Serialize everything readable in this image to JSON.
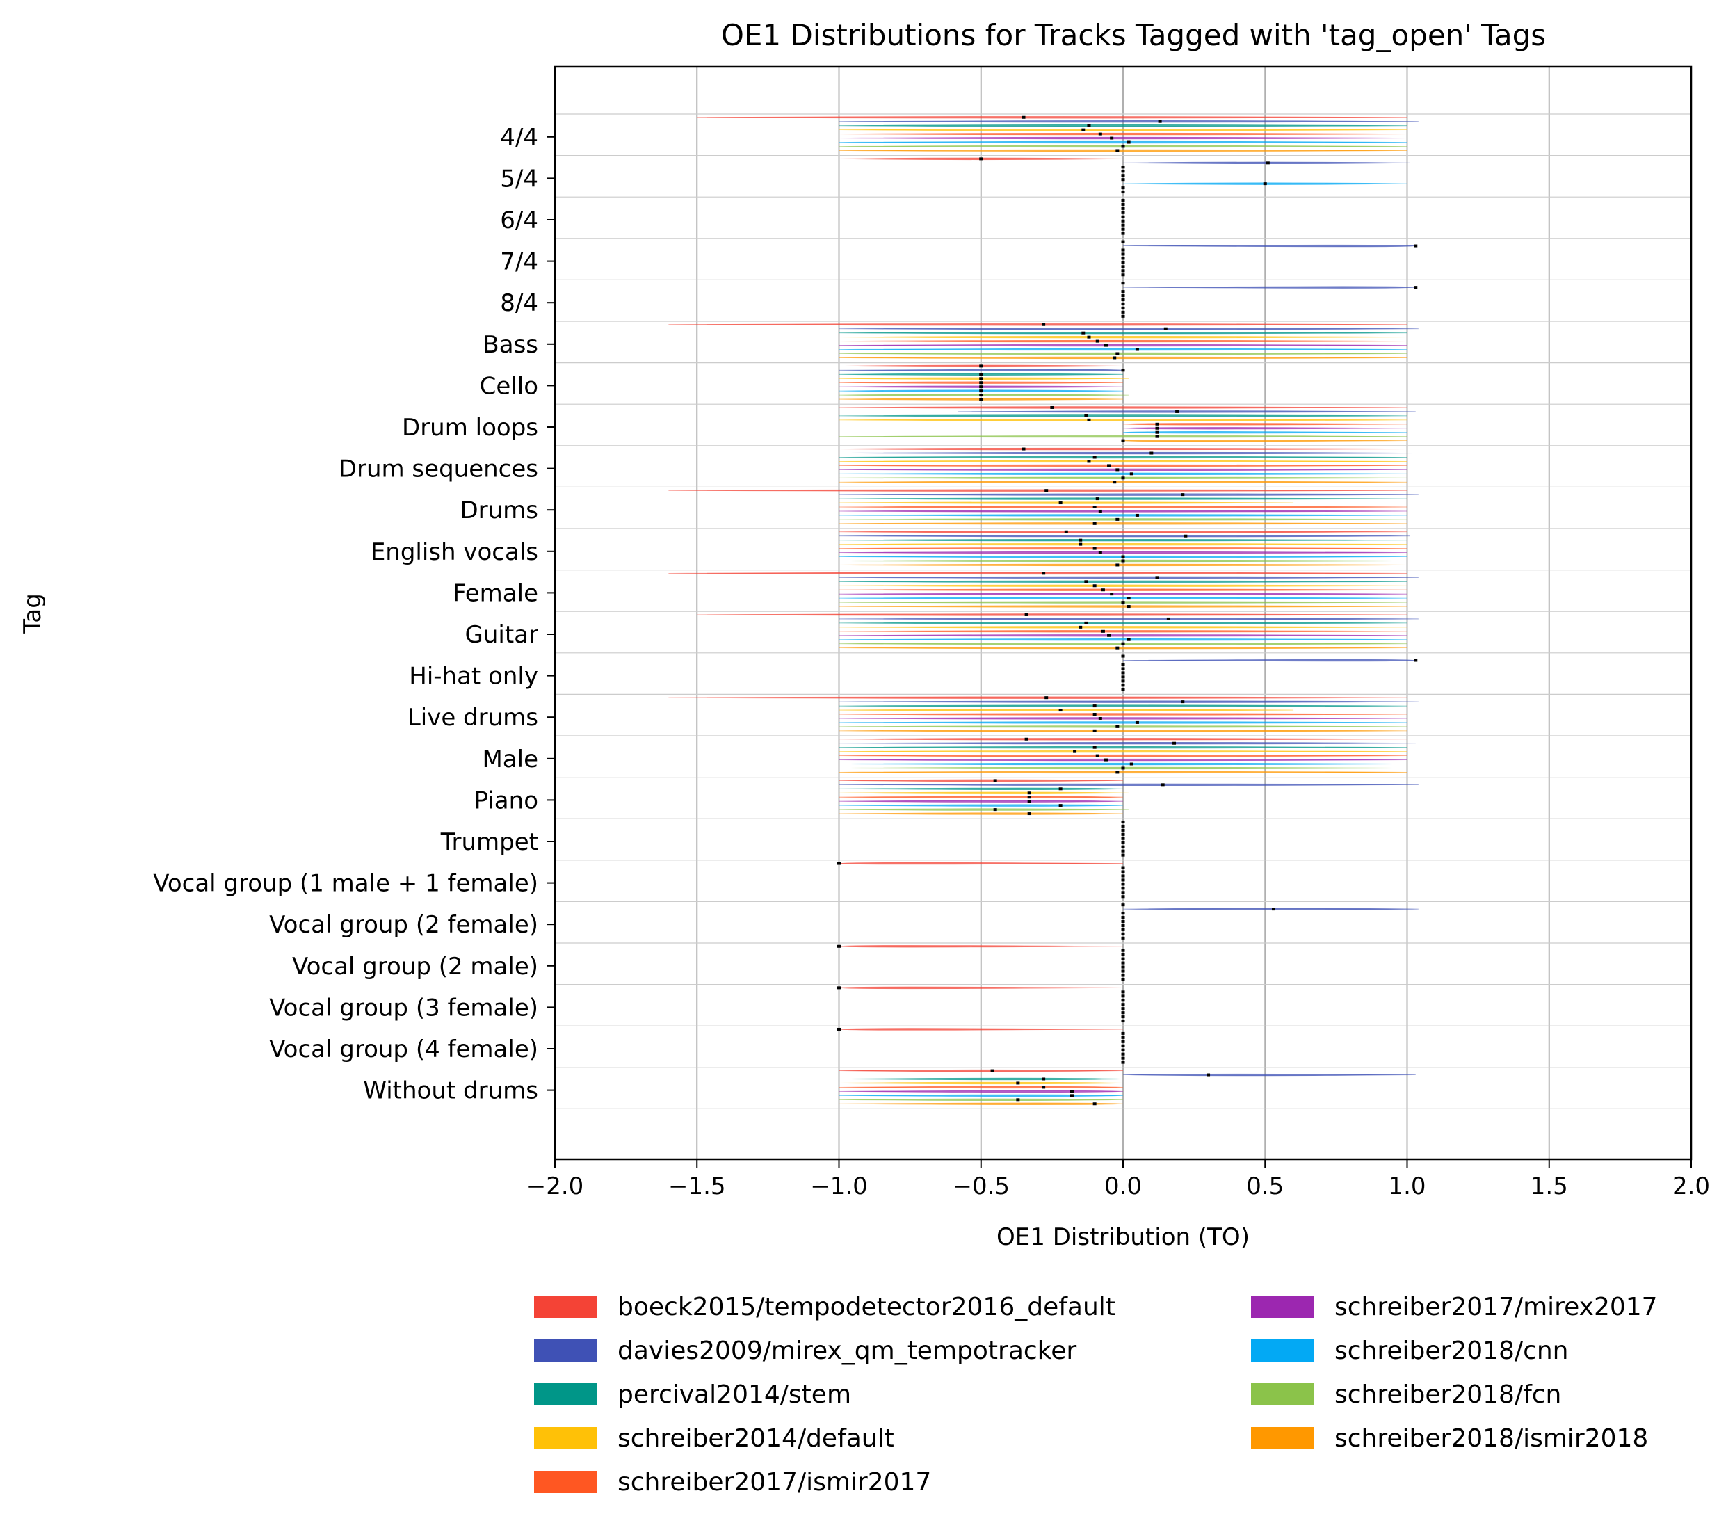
{
  "chart_data": {
    "type": "violin",
    "title": "OE1 Distributions for Tracks Tagged with 'tag_open' Tags",
    "xlabel": "OE1 Distribution (TO)",
    "ylabel": "Tag",
    "xlim": [
      -2.0,
      2.0
    ],
    "xticks": [
      -2.0,
      -1.5,
      -1.0,
      -0.5,
      0.0,
      0.5,
      1.0,
      1.5,
      2.0
    ],
    "xtick_labels": [
      "−2.0",
      "−1.5",
      "−1.0",
      "−0.5",
      "0.0",
      "0.5",
      "1.0",
      "1.5",
      "2.0"
    ],
    "grid": "x",
    "orientation": "horizontal",
    "legend_position": "below",
    "categories": [
      "4/4",
      "5/4",
      "6/4",
      "7/4",
      "8/4",
      "Bass",
      "Cello",
      "Drum loops",
      "Drum sequences",
      "Drums",
      "English vocals",
      "Female",
      "Guitar",
      "Hi-hat only",
      "Live drums",
      "Male",
      "Piano",
      "Trumpet",
      "Vocal group (1 male + 1 female)",
      "Vocal group (2 female)",
      "Vocal group (2 male)",
      "Vocal group (3 female)",
      "Vocal group (4 female)",
      "Without drums"
    ],
    "series": [
      {
        "name": "boeck2015/tempodetector2016_default",
        "color": "#f44336",
        "min": [
          -1.5,
          -1.0,
          0.0,
          0.0,
          0.0,
          -1.6,
          -0.98,
          -1.0,
          -1.0,
          -1.6,
          -1.0,
          -1.6,
          -1.5,
          0.0,
          -1.6,
          -1.0,
          -1.0,
          0.0,
          -1.0,
          0.0,
          -1.0,
          -1.0,
          -1.0,
          -1.0
        ],
        "max": [
          1.0,
          0.0,
          0.0,
          0.0,
          0.0,
          1.0,
          0.0,
          1.0,
          1.0,
          1.0,
          1.0,
          1.0,
          1.0,
          0.0,
          1.0,
          1.0,
          0.0,
          0.0,
          0.0,
          0.0,
          0.0,
          0.0,
          0.0,
          0.0
        ],
        "median": [
          -0.35,
          -0.5,
          0.0,
          0.0,
          0.0,
          -0.28,
          -0.5,
          -0.25,
          -0.35,
          -0.27,
          -0.2,
          -0.28,
          -0.34,
          0.0,
          -0.27,
          -0.34,
          -0.45,
          0.0,
          -1.0,
          0.0,
          -1.0,
          -1.0,
          -1.0,
          -0.46
        ]
      },
      {
        "name": "davies2009/mirex_qm_tempotracker",
        "color": "#3f51b5",
        "min": [
          -1.0,
          0.0,
          0.0,
          0.0,
          0.0,
          -1.0,
          -1.0,
          -0.58,
          -1.0,
          -1.0,
          -1.0,
          -1.0,
          -1.0,
          0.0,
          -1.0,
          -1.0,
          -1.0,
          0.0,
          0.0,
          0.0,
          0.0,
          0.0,
          0.0,
          0.0
        ],
        "max": [
          1.04,
          1.01,
          0.0,
          1.03,
          1.03,
          1.04,
          0.0,
          1.03,
          1.04,
          1.04,
          1.01,
          1.04,
          1.04,
          1.03,
          1.04,
          1.03,
          1.04,
          0.0,
          0.0,
          1.04,
          0.0,
          0.0,
          0.0,
          1.03
        ],
        "median": [
          0.13,
          0.51,
          0.0,
          1.03,
          1.03,
          0.15,
          0.0,
          0.19,
          0.1,
          0.21,
          0.22,
          0.12,
          0.16,
          1.03,
          0.21,
          0.18,
          0.14,
          0.0,
          0.0,
          0.53,
          0.0,
          0.0,
          0.0,
          0.3
        ]
      },
      {
        "name": "percival2014/stem",
        "color": "#009688",
        "min": [
          -1.0,
          0.0,
          0.0,
          0.0,
          0.0,
          -1.0,
          -1.0,
          -1.0,
          -1.0,
          -1.0,
          -1.0,
          -1.0,
          -1.0,
          0.0,
          -1.0,
          -1.0,
          -1.0,
          0.0,
          0.0,
          0.0,
          0.0,
          0.0,
          0.0,
          -1.0
        ],
        "max": [
          1.0,
          0.0,
          0.0,
          0.0,
          0.0,
          1.0,
          0.0,
          1.0,
          1.0,
          1.0,
          1.0,
          1.0,
          1.0,
          0.0,
          1.0,
          1.0,
          0.0,
          0.0,
          0.0,
          0.0,
          0.0,
          0.0,
          0.0,
          0.0
        ],
        "median": [
          -0.12,
          0.0,
          0.0,
          0.0,
          0.0,
          -0.14,
          -0.5,
          -0.13,
          -0.1,
          -0.09,
          -0.15,
          -0.13,
          -0.13,
          0.0,
          -0.1,
          -0.1,
          -0.22,
          0.0,
          0.0,
          0.0,
          0.0,
          0.0,
          0.0,
          -0.28
        ]
      },
      {
        "name": "schreiber2014/default",
        "color": "#ffc107",
        "min": [
          -1.0,
          0.0,
          0.0,
          0.0,
          0.0,
          -1.0,
          -1.0,
          -1.0,
          -1.0,
          -1.0,
          -1.0,
          -1.0,
          -1.0,
          0.0,
          -1.0,
          -1.0,
          -1.0,
          0.0,
          0.0,
          0.0,
          0.0,
          0.0,
          0.0,
          -1.0
        ],
        "max": [
          1.0,
          0.0,
          0.0,
          0.0,
          0.0,
          1.0,
          0.02,
          1.0,
          1.0,
          0.6,
          1.0,
          1.0,
          1.0,
          0.0,
          0.6,
          1.0,
          0.02,
          0.0,
          0.0,
          0.0,
          0.0,
          0.0,
          0.0,
          0.0
        ],
        "median": [
          -0.14,
          0.0,
          0.0,
          0.0,
          0.0,
          -0.12,
          -0.5,
          -0.12,
          -0.12,
          -0.22,
          -0.15,
          -0.1,
          -0.15,
          0.0,
          -0.22,
          -0.17,
          -0.33,
          0.0,
          0.0,
          0.0,
          0.0,
          0.0,
          0.0,
          -0.37
        ]
      },
      {
        "name": "schreiber2017/ismir2017",
        "color": "#ff5722",
        "min": [
          -1.0,
          0.0,
          0.0,
          0.0,
          0.0,
          -1.0,
          -1.0,
          0.0,
          -1.0,
          -1.0,
          -1.0,
          -1.0,
          -1.0,
          0.0,
          -1.0,
          -1.0,
          -1.0,
          0.0,
          0.0,
          0.0,
          0.0,
          0.0,
          0.0,
          -1.0
        ],
        "max": [
          1.0,
          0.0,
          0.0,
          0.0,
          0.0,
          1.0,
          0.0,
          1.0,
          1.0,
          1.0,
          1.0,
          1.0,
          1.0,
          0.0,
          1.0,
          1.0,
          0.0,
          0.0,
          0.0,
          0.0,
          0.0,
          0.0,
          0.0,
          0.0
        ],
        "median": [
          -0.08,
          0.0,
          0.0,
          0.0,
          0.0,
          -0.09,
          -0.5,
          0.12,
          -0.05,
          -0.1,
          -0.1,
          -0.07,
          -0.07,
          0.0,
          -0.1,
          -0.09,
          -0.33,
          0.0,
          0.0,
          0.0,
          0.0,
          0.0,
          0.0,
          -0.28
        ]
      },
      {
        "name": "schreiber2017/mirex2017",
        "color": "#9c27b0",
        "min": [
          -1.0,
          0.0,
          0.0,
          0.0,
          0.0,
          -1.0,
          -1.0,
          0.0,
          -1.0,
          -1.0,
          -1.0,
          -1.0,
          -1.0,
          0.0,
          -1.0,
          -1.0,
          -1.0,
          0.0,
          0.0,
          0.0,
          0.0,
          0.0,
          0.0,
          -1.0
        ],
        "max": [
          1.0,
          0.0,
          0.0,
          0.0,
          0.0,
          1.0,
          0.0,
          1.0,
          1.0,
          1.0,
          1.0,
          1.0,
          1.0,
          0.0,
          1.0,
          1.0,
          0.0,
          0.0,
          0.0,
          0.0,
          0.0,
          0.0,
          0.0,
          0.0
        ],
        "median": [
          -0.04,
          0.0,
          0.0,
          0.0,
          0.0,
          -0.06,
          -0.5,
          0.12,
          -0.02,
          -0.08,
          -0.08,
          -0.04,
          -0.05,
          0.0,
          -0.08,
          -0.06,
          -0.33,
          0.0,
          0.0,
          0.0,
          0.0,
          0.0,
          0.0,
          -0.18
        ]
      },
      {
        "name": "schreiber2018/cnn",
        "color": "#03a9f4",
        "min": [
          -1.0,
          0.0,
          0.0,
          0.0,
          0.0,
          -1.0,
          -1.0,
          0.0,
          -1.0,
          -1.0,
          -1.0,
          -1.0,
          -1.0,
          0.0,
          -1.0,
          -1.0,
          -1.0,
          0.0,
          0.0,
          0.0,
          0.0,
          0.0,
          0.0,
          -1.0
        ],
        "max": [
          1.0,
          1.0,
          0.0,
          0.0,
          0.0,
          1.0,
          0.0,
          1.0,
          1.0,
          1.0,
          1.0,
          1.0,
          1.0,
          0.0,
          1.0,
          1.0,
          0.0,
          0.0,
          0.0,
          0.0,
          0.0,
          0.0,
          0.0,
          0.0
        ],
        "median": [
          0.02,
          0.5,
          0.0,
          0.0,
          0.0,
          0.05,
          -0.5,
          0.12,
          0.03,
          0.05,
          0.0,
          0.02,
          0.02,
          0.0,
          0.05,
          0.03,
          -0.22,
          0.0,
          0.0,
          0.0,
          0.0,
          0.0,
          0.0,
          -0.18
        ]
      },
      {
        "name": "schreiber2018/fcn",
        "color": "#8bc34a",
        "min": [
          -1.0,
          0.0,
          0.0,
          0.0,
          0.0,
          -1.0,
          -1.0,
          -1.0,
          -1.0,
          -1.0,
          -1.0,
          -1.0,
          -1.0,
          0.0,
          -1.0,
          -1.0,
          -1.0,
          0.0,
          0.0,
          0.0,
          0.0,
          0.0,
          0.0,
          -1.0
        ],
        "max": [
          1.0,
          0.0,
          0.0,
          0.0,
          0.0,
          1.0,
          0.02,
          1.0,
          1.0,
          1.0,
          1.0,
          1.0,
          1.0,
          0.0,
          1.0,
          1.0,
          0.02,
          0.0,
          0.0,
          0.0,
          0.0,
          0.0,
          0.0,
          0.0
        ],
        "median": [
          0.0,
          0.0,
          0.0,
          0.0,
          0.0,
          -0.02,
          -0.5,
          0.12,
          0.0,
          -0.02,
          0.0,
          0.0,
          0.0,
          0.0,
          -0.02,
          0.0,
          -0.45,
          0.0,
          0.0,
          0.0,
          0.0,
          0.0,
          0.0,
          -0.37
        ]
      },
      {
        "name": "schreiber2018/ismir2018",
        "color": "#ff9800",
        "min": [
          -1.0,
          0.0,
          0.0,
          0.0,
          0.0,
          -1.0,
          -1.0,
          0.0,
          -1.0,
          -1.0,
          -1.0,
          -1.0,
          -1.0,
          0.0,
          -1.0,
          -1.0,
          -1.0,
          0.0,
          0.0,
          0.0,
          0.0,
          0.0,
          0.0,
          -1.0
        ],
        "max": [
          1.0,
          0.0,
          0.0,
          0.0,
          0.0,
          1.0,
          0.0,
          1.0,
          1.0,
          1.0,
          1.0,
          1.0,
          1.0,
          0.0,
          1.0,
          1.0,
          0.0,
          0.0,
          0.0,
          0.0,
          0.0,
          0.0,
          0.0,
          0.0
        ],
        "median": [
          -0.02,
          0.0,
          0.0,
          0.0,
          0.0,
          -0.03,
          -0.5,
          0.0,
          -0.03,
          -0.1,
          -0.02,
          0.02,
          -0.02,
          0.0,
          -0.1,
          -0.02,
          -0.33,
          0.0,
          0.0,
          0.0,
          0.0,
          0.0,
          0.0,
          -0.1
        ]
      }
    ]
  }
}
